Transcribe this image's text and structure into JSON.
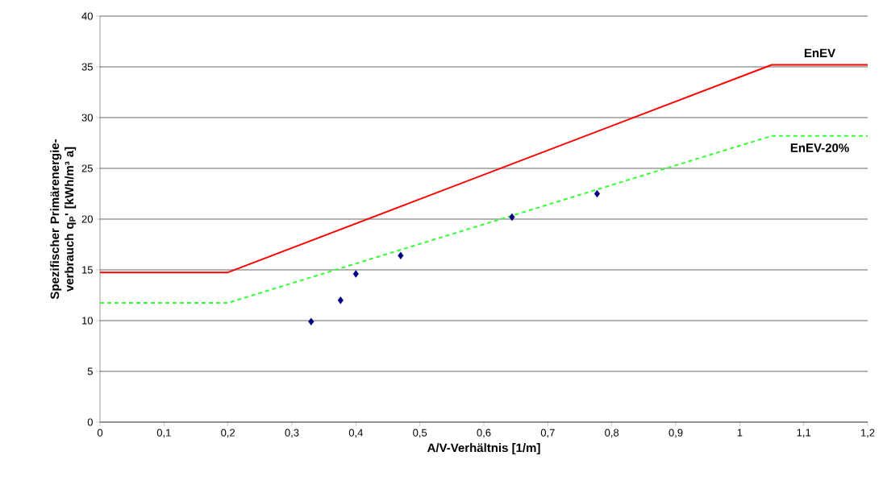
{
  "chart_data": {
    "type": "line",
    "xlabel": "A/V-Verhältnis [1/m]",
    "ylabel": "Spezifischer Primärenergie-verbrauch q$_{P}$' [kWh/m³ a]",
    "xlim": [
      0,
      1.2
    ],
    "ylim": [
      0,
      40
    ],
    "xticks": [
      0,
      {
        "value": 0.1,
        "label": "0,1"
      },
      {
        "value": 0.2,
        "label": "0,2"
      },
      {
        "value": 0.3,
        "label": "0,3"
      },
      {
        "value": 0.4,
        "label": "0,4"
      },
      {
        "value": 0.5,
        "label": "0,5"
      },
      {
        "value": 0.6,
        "label": "0,6"
      },
      {
        "value": 0.7,
        "label": "0,7"
      },
      {
        "value": 0.8,
        "label": "0,8"
      },
      {
        "value": 0.9,
        "label": "0,9"
      },
      1,
      {
        "value": 1.1,
        "label": "1,1"
      },
      {
        "value": 1.2,
        "label": "1,2"
      }
    ],
    "yticks": [
      0,
      5,
      10,
      15,
      20,
      25,
      30,
      35,
      40
    ],
    "grid": "y",
    "series": [
      {
        "color": "#ff0000",
        "line_style": "solid",
        "marker": "none",
        "x": [
          0,
          0.2,
          1.05,
          1.2
        ],
        "values": [
          14.75,
          14.75,
          35.2,
          35.2
        ]
      },
      {
        "color": "#33ff33",
        "line_style": "dashed",
        "marker": "none",
        "x": [
          0,
          0.2,
          1.05,
          1.2
        ],
        "values": [
          11.75,
          11.75,
          28.2,
          28.2
        ]
      },
      {
        "type": "scatter",
        "color": "#000080",
        "marker": "diamond",
        "x": [
          0.33,
          0.376,
          0.4,
          0.47,
          0.644,
          0.777
        ],
        "values": [
          9.9,
          12.0,
          14.6,
          16.4,
          20.2,
          22.5
        ]
      }
    ],
    "annotations": [
      "EnEV",
      "EnEV-20%"
    ]
  }
}
